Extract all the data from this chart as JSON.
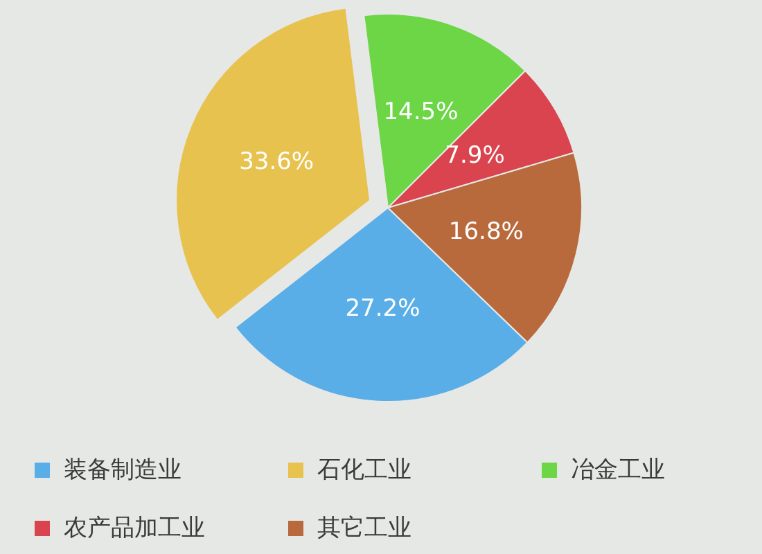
{
  "chart_data": {
    "type": "pie",
    "categories": [
      "装备制造业",
      "石化工业",
      "冶金工业",
      "农产品加工业",
      "其它工业"
    ],
    "values": [
      27.2,
      33.6,
      14.5,
      7.9,
      16.8
    ],
    "colors": [
      "#5aaee8",
      "#e8c24e",
      "#6cd646",
      "#d9444e",
      "#b86a3c"
    ],
    "value_labels": [
      "27.2%",
      "33.6%",
      "14.5%",
      "7.9%",
      "16.8%"
    ],
    "legend": "bottom"
  }
}
